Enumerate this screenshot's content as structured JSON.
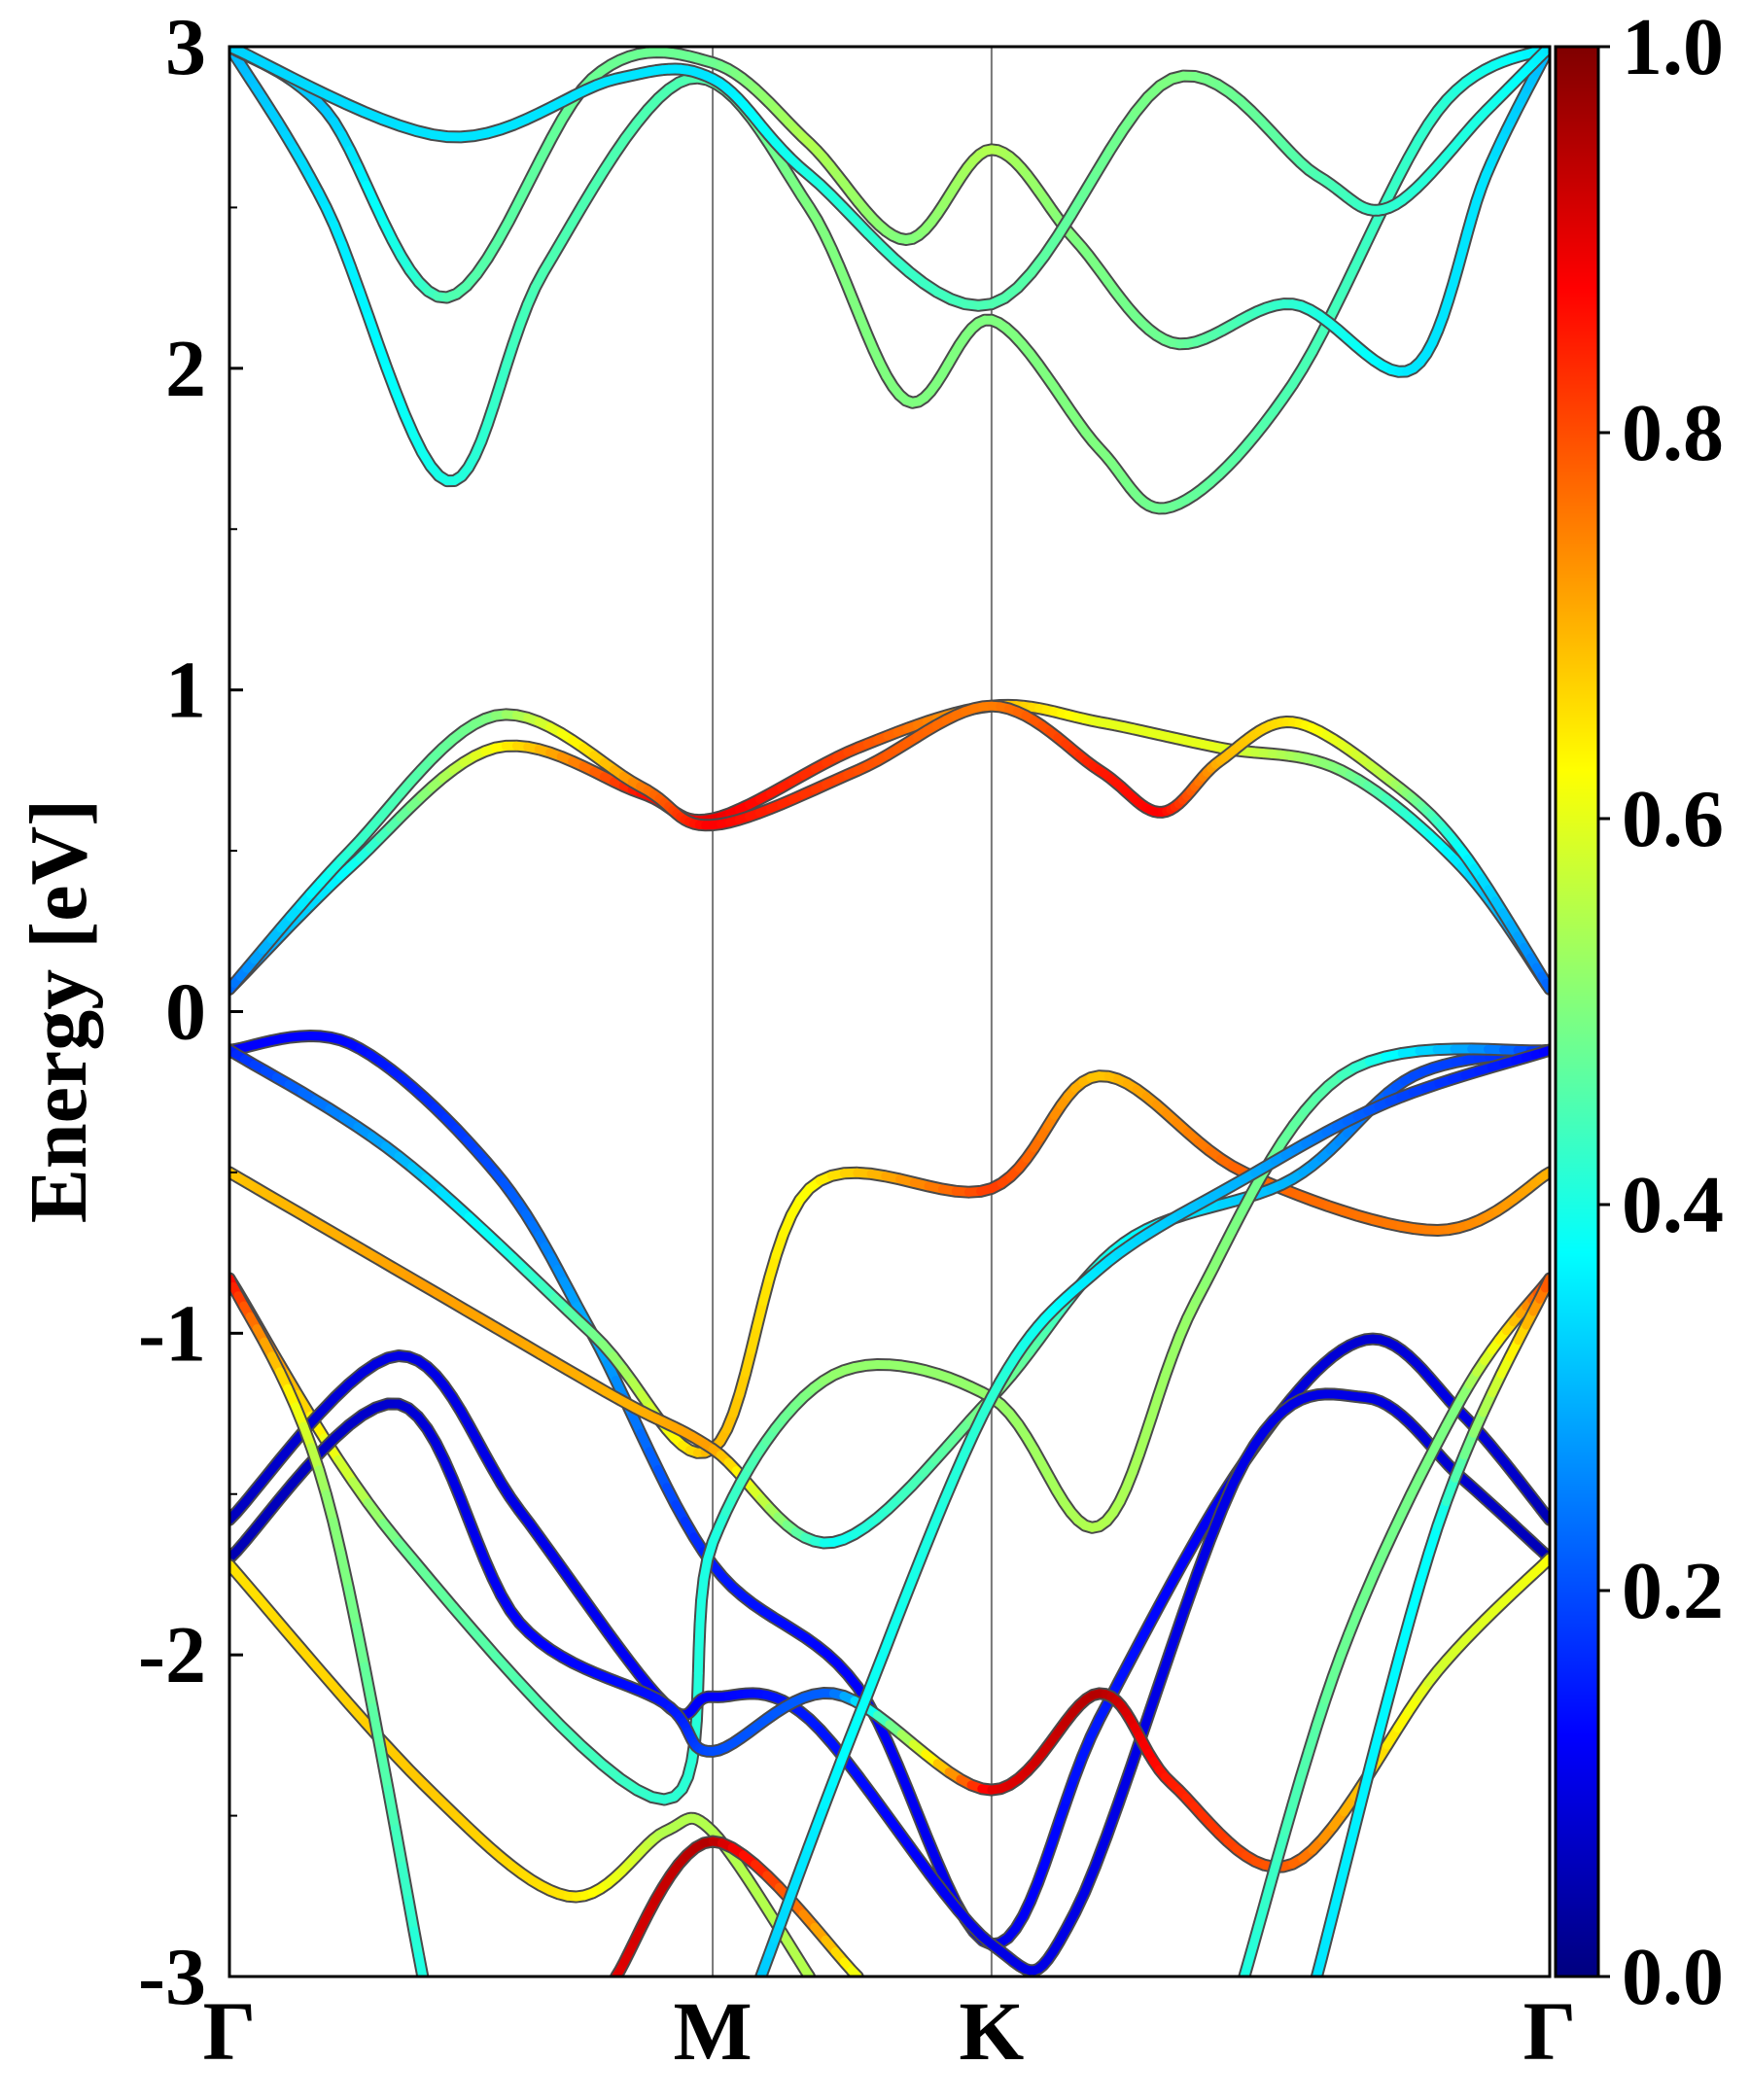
{
  "chart_data": {
    "type": "line",
    "title": "",
    "xlabel": "",
    "ylabel": "Energy [eV]",
    "ylim": [
      -3,
      3
    ],
    "yticks": [
      -3,
      -2,
      -1,
      0,
      1,
      2,
      3
    ],
    "ytick_labels": [
      "-3",
      "-2",
      "-1",
      "0",
      "1",
      "2",
      "3"
    ],
    "kpath": [
      {
        "label": "Γ",
        "pos": 0.0
      },
      {
        "label": "M",
        "pos": 1.0
      },
      {
        "label": "K",
        "pos": 1.577
      },
      {
        "label": "Γ",
        "pos": 2.732
      }
    ],
    "colorbar": {
      "colormap": "jet",
      "range": [
        0.0,
        1.0
      ],
      "ticks": [
        0.0,
        0.2,
        0.4,
        0.6,
        0.8,
        1.0
      ],
      "tick_labels": [
        "0.0",
        "0.2",
        "0.4",
        "0.6",
        "0.8",
        "1.0"
      ]
    },
    "colormap_stops": [
      "#00007f",
      "#0000ff",
      "#007fff",
      "#00ffff",
      "#7fff7f",
      "#ffff00",
      "#ff7f00",
      "#ff0000",
      "#7f0000"
    ],
    "series": [
      {
        "name": "cb-low-1",
        "points": [
          [
            0,
            0.07,
            0.22
          ],
          [
            0.25,
            0.45,
            0.38
          ],
          [
            0.55,
            0.82,
            0.62
          ],
          [
            0.85,
            0.68,
            0.86
          ],
          [
            1.0,
            0.6,
            0.9
          ],
          [
            1.3,
            0.82,
            0.8
          ],
          [
            1.577,
            0.95,
            0.7
          ],
          [
            1.8,
            0.9,
            0.6
          ],
          [
            2.05,
            0.82,
            0.6
          ],
          [
            2.3,
            0.75,
            0.5
          ],
          [
            2.55,
            0.45,
            0.35
          ],
          [
            2.732,
            0.07,
            0.22
          ]
        ]
      },
      {
        "name": "cb-low-2",
        "points": [
          [
            0,
            0.07,
            0.22
          ],
          [
            0.25,
            0.5,
            0.42
          ],
          [
            0.55,
            0.92,
            0.5
          ],
          [
            0.85,
            0.7,
            0.75
          ],
          [
            1.0,
            0.58,
            0.88
          ],
          [
            1.3,
            0.75,
            0.8
          ],
          [
            1.577,
            0.95,
            0.75
          ],
          [
            1.8,
            0.75,
            0.85
          ],
          [
            1.93,
            0.62,
            0.88
          ],
          [
            2.05,
            0.78,
            0.7
          ],
          [
            2.2,
            0.9,
            0.65
          ],
          [
            2.4,
            0.72,
            0.55
          ],
          [
            2.55,
            0.5,
            0.38
          ],
          [
            2.732,
            0.07,
            0.22
          ]
        ]
      },
      {
        "name": "cb-high-1",
        "points": [
          [
            0,
            3.0,
            0.3
          ],
          [
            0.2,
            2.5,
            0.35
          ],
          [
            0.45,
            1.65,
            0.4
          ],
          [
            0.65,
            2.3,
            0.45
          ],
          [
            0.95,
            2.9,
            0.45
          ],
          [
            1.2,
            2.5,
            0.5
          ],
          [
            1.4,
            1.9,
            0.5
          ],
          [
            1.577,
            2.15,
            0.5
          ],
          [
            1.8,
            1.75,
            0.5
          ],
          [
            1.95,
            1.57,
            0.48
          ],
          [
            2.2,
            1.95,
            0.45
          ],
          [
            2.5,
            2.8,
            0.42
          ],
          [
            2.732,
            3.0,
            0.35
          ]
        ]
      },
      {
        "name": "cb-high-2",
        "points": [
          [
            0,
            3.0,
            0.32
          ],
          [
            0.2,
            2.8,
            0.32
          ],
          [
            0.45,
            2.22,
            0.45
          ],
          [
            0.75,
            2.9,
            0.48
          ],
          [
            1.0,
            2.95,
            0.48
          ],
          [
            1.2,
            2.7,
            0.55
          ],
          [
            1.4,
            2.4,
            0.5
          ],
          [
            1.577,
            2.68,
            0.55
          ],
          [
            1.75,
            2.4,
            0.5
          ],
          [
            1.95,
            2.08,
            0.48
          ],
          [
            2.2,
            2.2,
            0.42
          ],
          [
            2.45,
            2.0,
            0.35
          ],
          [
            2.6,
            2.6,
            0.35
          ],
          [
            2.732,
            3.0,
            0.3
          ]
        ]
      },
      {
        "name": "cb-high-3",
        "points": [
          [
            0,
            3.0,
            0.33
          ],
          [
            0.45,
            2.72,
            0.35
          ],
          [
            0.8,
            2.9,
            0.35
          ],
          [
            1.0,
            2.9,
            0.35
          ],
          [
            1.2,
            2.6,
            0.4
          ],
          [
            1.577,
            2.2,
            0.45
          ],
          [
            1.95,
            2.9,
            0.5
          ],
          [
            2.25,
            2.6,
            0.45
          ],
          [
            2.4,
            2.5,
            0.42
          ],
          [
            2.6,
            2.8,
            0.4
          ],
          [
            2.732,
            3.0,
            0.35
          ]
        ]
      },
      {
        "name": "vb-1",
        "points": [
          [
            0,
            -0.12,
            0.12
          ],
          [
            0.25,
            -0.1,
            0.13
          ],
          [
            0.55,
            -0.5,
            0.2
          ],
          [
            0.75,
            -1.0,
            0.3
          ],
          [
            1.0,
            -1.72,
            0.15
          ],
          [
            1.3,
            -2.1,
            0.12
          ],
          [
            1.577,
            -2.9,
            0.1
          ],
          [
            1.8,
            -2.2,
            0.15
          ],
          [
            2.1,
            -1.4,
            0.1
          ],
          [
            2.35,
            -1.02,
            0.08
          ],
          [
            2.55,
            -1.25,
            0.1
          ],
          [
            2.732,
            -1.58,
            0.05
          ]
        ]
      },
      {
        "name": "vb-2",
        "points": [
          [
            0,
            -0.12,
            0.15
          ],
          [
            0.35,
            -0.45,
            0.3
          ],
          [
            0.75,
            -1.0,
            0.48
          ],
          [
            1.0,
            -1.36,
            0.7
          ],
          [
            1.2,
            -0.55,
            0.62
          ],
          [
            1.577,
            -0.55,
            0.82
          ],
          [
            1.8,
            -0.2,
            0.68
          ],
          [
            2.1,
            -0.5,
            0.78
          ],
          [
            2.5,
            -0.68,
            0.75
          ],
          [
            2.732,
            -0.5,
            0.7
          ]
        ]
      },
      {
        "name": "vb-3",
        "points": [
          [
            0,
            -0.5,
            0.68
          ],
          [
            0.4,
            -0.85,
            0.72
          ],
          [
            0.8,
            -1.2,
            0.7
          ],
          [
            1.0,
            -1.36,
            0.72
          ],
          [
            1.25,
            -1.65,
            0.38
          ],
          [
            1.577,
            -1.2,
            0.5
          ],
          [
            1.85,
            -0.72,
            0.38
          ],
          [
            2.2,
            -0.52,
            0.3
          ],
          [
            2.45,
            -0.2,
            0.2
          ],
          [
            2.732,
            -0.12,
            0.15
          ]
        ]
      },
      {
        "name": "vb-4",
        "points": [
          [
            0,
            -0.83,
            0.88
          ],
          [
            0.35,
            -1.65,
            0.48
          ],
          [
            0.9,
            -2.45,
            0.42
          ],
          [
            1.0,
            -1.65,
            0.4
          ],
          [
            1.25,
            -1.13,
            0.52
          ],
          [
            1.577,
            -1.2,
            0.52
          ],
          [
            1.8,
            -1.6,
            0.55
          ],
          [
            2.0,
            -0.9,
            0.52
          ],
          [
            2.3,
            -0.2,
            0.45
          ],
          [
            2.732,
            -0.12,
            0.15
          ]
        ]
      },
      {
        "name": "vb-5",
        "points": [
          [
            0,
            -1.58,
            0.06
          ],
          [
            0.35,
            -1.07,
            0.1
          ],
          [
            0.6,
            -1.55,
            0.1
          ],
          [
            0.9,
            -2.15,
            0.12
          ],
          [
            1.0,
            -2.13,
            0.12
          ],
          [
            1.2,
            -2.2,
            0.15
          ],
          [
            1.577,
            -2.9,
            0.1
          ],
          [
            1.75,
            -2.8,
            0.1
          ],
          [
            2.1,
            -1.4,
            0.1
          ],
          [
            2.35,
            -1.2,
            0.1
          ],
          [
            2.55,
            -1.45,
            0.08
          ],
          [
            2.732,
            -1.7,
            0.05
          ]
        ]
      },
      {
        "name": "vb-6",
        "points": [
          [
            0,
            -1.7,
            0.05
          ],
          [
            0.35,
            -1.22,
            0.08
          ],
          [
            0.6,
            -1.9,
            0.12
          ],
          [
            0.9,
            -2.15,
            0.14
          ],
          [
            1.0,
            -2.3,
            0.2
          ],
          [
            1.25,
            -2.12,
            0.22
          ],
          [
            1.577,
            -2.42,
            0.9
          ],
          [
            1.8,
            -2.12,
            0.95
          ],
          [
            1.95,
            -2.4,
            0.85
          ],
          [
            2.2,
            -2.65,
            0.78
          ],
          [
            2.5,
            -2.05,
            0.58
          ],
          [
            2.732,
            -1.7,
            0.62
          ]
        ]
      },
      {
        "name": "vb-7",
        "points": [
          [
            0,
            -1.72,
            0.65
          ],
          [
            0.4,
            -2.4,
            0.68
          ],
          [
            0.7,
            -2.75,
            0.65
          ],
          [
            0.9,
            -2.55,
            0.55
          ],
          [
            1.0,
            -2.55,
            0.55
          ],
          [
            1.2,
            -3.0,
            0.55
          ]
        ]
      },
      {
        "name": "vb-8",
        "points": [
          [
            0,
            -0.83,
            0.88
          ],
          [
            0.2,
            -1.5,
            0.52
          ],
          [
            0.4,
            -3.0,
            0.4
          ]
        ]
      },
      {
        "name": "vb-9",
        "points": [
          [
            0.8,
            -3.0,
            0.9
          ],
          [
            1.0,
            -2.58,
            0.95
          ],
          [
            1.3,
            -3.0,
            0.6
          ]
        ]
      },
      {
        "name": "vb-10",
        "points": [
          [
            1.1,
            -3.0,
            0.32
          ],
          [
            1.3,
            -2.2,
            0.38
          ],
          [
            1.577,
            -1.2,
            0.42
          ],
          [
            1.8,
            -0.8,
            0.35
          ],
          [
            2.1,
            -0.52,
            0.3
          ],
          [
            2.4,
            -0.28,
            0.2
          ],
          [
            2.732,
            -0.12,
            0.12
          ]
        ]
      },
      {
        "name": "vb-11",
        "points": [
          [
            2.1,
            -3.0,
            0.4
          ],
          [
            2.3,
            -2.0,
            0.48
          ],
          [
            2.55,
            -1.2,
            0.5
          ],
          [
            2.732,
            -0.83,
            0.85
          ]
        ]
      },
      {
        "name": "vb-12",
        "points": [
          [
            2.25,
            -3.0,
            0.35
          ],
          [
            2.5,
            -1.6,
            0.38
          ],
          [
            2.732,
            -0.83,
            0.8
          ]
        ]
      }
    ]
  }
}
